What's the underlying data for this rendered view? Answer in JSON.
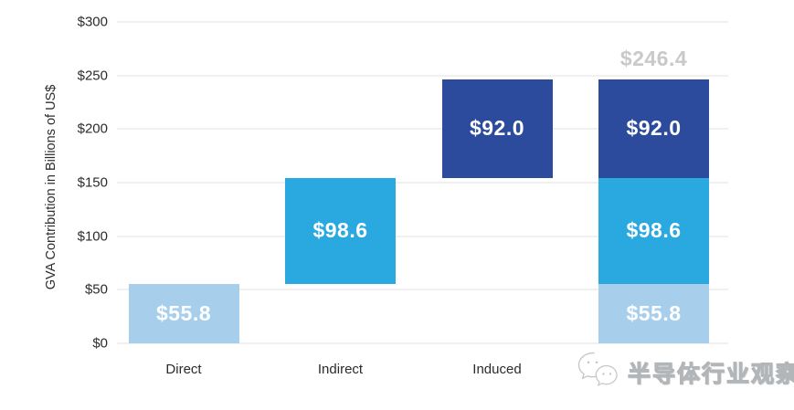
{
  "chart_data": {
    "type": "bar",
    "subtype": "waterfall_with_stacked_total",
    "title": "",
    "xlabel": "",
    "ylabel": "GVA Contribution in Billions of US$",
    "ylim": [
      0,
      300
    ],
    "yticks": [
      0,
      50,
      100,
      150,
      200,
      250,
      300
    ],
    "ytick_labels": [
      "$0",
      "$50",
      "$100",
      "$150",
      "$200",
      "$250",
      "$300"
    ],
    "grid": "horizontal",
    "gridline_color": "#e1e1e1",
    "legend": "none",
    "categories": [
      "Direct",
      "Indirect",
      "Induced",
      ""
    ],
    "series_colors": {
      "direct": "#a7cfec",
      "indirect": "#2aa9e0",
      "induced": "#2c4b9c"
    },
    "value_label_color": "#ffffff",
    "total_label_color": "#c7c9cb",
    "bars": [
      {
        "category": "Direct",
        "segments": [
          {
            "name": "direct",
            "start": 0,
            "value": 55.8,
            "label": "$55.8"
          }
        ]
      },
      {
        "category": "Indirect",
        "segments": [
          {
            "name": "indirect",
            "start": 55.8,
            "value": 98.6,
            "label": "$98.6"
          }
        ]
      },
      {
        "category": "Induced",
        "segments": [
          {
            "name": "induced",
            "start": 154.4,
            "value": 92.0,
            "label": "$92.0"
          }
        ]
      },
      {
        "category": "",
        "total": 246.4,
        "total_label": "$246.4",
        "segments": [
          {
            "name": "direct",
            "start": 0,
            "value": 55.8,
            "label": "$55.8"
          },
          {
            "name": "indirect",
            "start": 55.8,
            "value": 98.6,
            "label": "$98.6"
          },
          {
            "name": "induced",
            "start": 154.4,
            "value": 92.0,
            "label": "$92.0"
          }
        ]
      }
    ]
  },
  "watermark": {
    "logo": "wechat-chat-bubbles-logo",
    "text": "半导体行业观察"
  }
}
